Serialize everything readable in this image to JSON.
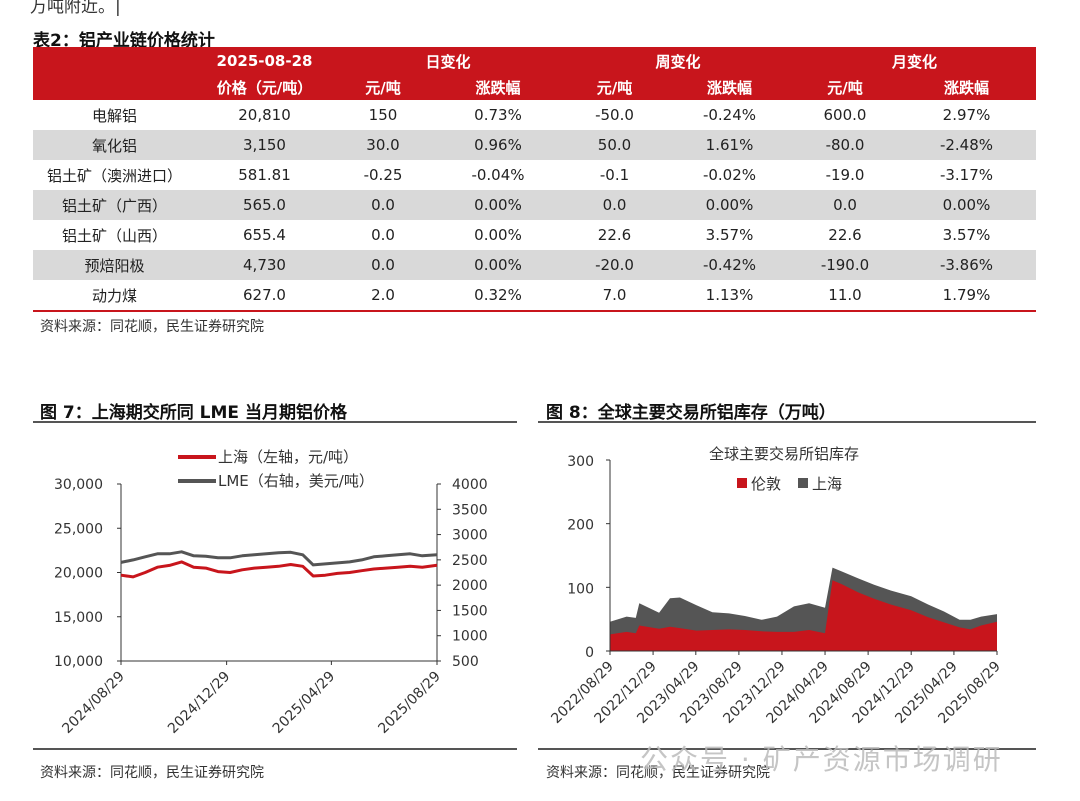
{
  "fragment_text": "万吨附近。|",
  "table": {
    "title": "表2：铝产业链价格统计",
    "date": "2025-08-28",
    "groups": [
      "日变化",
      "周变化",
      "月变化"
    ],
    "sub_headers": [
      "价格（元/吨）",
      "元/吨",
      "涨跌幅",
      "元/吨",
      "涨跌幅",
      "元/吨",
      "涨跌幅"
    ],
    "rows": [
      {
        "name": "电解铝",
        "cells": [
          "20,810",
          "150",
          "0.73%",
          "-50.0",
          "-0.24%",
          "600.0",
          "2.97%"
        ]
      },
      {
        "name": "氧化铝",
        "cells": [
          "3,150",
          "30.0",
          "0.96%",
          "50.0",
          "1.61%",
          "-80.0",
          "-2.48%"
        ]
      },
      {
        "name": "铝土矿（澳洲进口）",
        "cells": [
          "581.81",
          "-0.25",
          "-0.04%",
          "-0.1",
          "-0.02%",
          "-19.0",
          "-3.17%"
        ]
      },
      {
        "name": "铝土矿（广西）",
        "cells": [
          "565.0",
          "0.0",
          "0.00%",
          "0.0",
          "0.00%",
          "0.0",
          "0.00%"
        ]
      },
      {
        "name": "铝土矿（山西）",
        "cells": [
          "655.4",
          "0.0",
          "0.00%",
          "22.6",
          "3.57%",
          "22.6",
          "3.57%"
        ]
      },
      {
        "name": "预焙阳极",
        "cells": [
          "4,730",
          "0.0",
          "0.00%",
          "-20.0",
          "-0.42%",
          "-190.0",
          "-3.86%"
        ]
      },
      {
        "name": "动力煤",
        "cells": [
          "627.0",
          "2.0",
          "0.32%",
          "7.0",
          "1.13%",
          "11.0",
          "1.79%"
        ]
      }
    ],
    "source": "资料来源：同花顺，民生证券研究院"
  },
  "chart7": {
    "title": "图 7：上海期交所同 LME 当月期铝价格",
    "source": "资料来源：同花顺，民生证券研究院"
  },
  "chart8": {
    "title": "图 8：全球主要交易所铝库存（万吨）",
    "source": "资料来源：同花顺，民生证券研究院"
  },
  "watermark": "公众号 · 矿产资源市场调研",
  "colors": {
    "red": "#c8151c",
    "gray": "#555555",
    "header_bg": "#c8151c",
    "alt_row": "#d9d9d9"
  },
  "chart_data": [
    {
      "type": "line",
      "title": "",
      "x_ticks": [
        "2024/08/29",
        "2024/12/29",
        "2025/04/29",
        "2025/08/29"
      ],
      "y_left_ticks": [
        "30,000",
        "25,000",
        "20,000",
        "15,000",
        "10,000"
      ],
      "y_left_range": [
        10000,
        30000
      ],
      "y_right_ticks": [
        "4000",
        "3500",
        "3000",
        "2500",
        "2000",
        "1500",
        "1000",
        "500"
      ],
      "y_right_range": [
        500,
        4000
      ],
      "legend": {
        "position": "top",
        "items": [
          "上海（左轴，元/吨）",
          "LME（右轴，美元/吨）"
        ]
      },
      "series": [
        {
          "name": "上海（左轴，元/吨）",
          "axis": "left",
          "color": "#c8151c",
          "x": [
            "2024/08/29",
            "2024/09/12",
            "2024/09/26",
            "2024/10/10",
            "2024/10/24",
            "2024/11/07",
            "2024/11/21",
            "2024/12/05",
            "2024/12/19",
            "2025/01/02",
            "2025/01/16",
            "2025/01/30",
            "2025/02/13",
            "2025/02/27",
            "2025/03/13",
            "2025/03/27",
            "2025/04/08",
            "2025/04/22",
            "2025/05/06",
            "2025/05/20",
            "2025/06/03",
            "2025/06/17",
            "2025/07/01",
            "2025/07/15",
            "2025/07/29",
            "2025/08/12",
            "2025/08/29"
          ],
          "y": [
            19700,
            19500,
            20000,
            20600,
            20800,
            21200,
            20600,
            20500,
            20100,
            20000,
            20300,
            20500,
            20600,
            20700,
            20900,
            20700,
            19600,
            19700,
            19900,
            20000,
            20200,
            20400,
            20500,
            20600,
            20700,
            20600,
            20810
          ]
        },
        {
          "name": "LME（右轴，美元/吨）",
          "axis": "right",
          "color": "#555555",
          "x": [
            "2024/08/29",
            "2024/09/12",
            "2024/09/26",
            "2024/10/10",
            "2024/10/24",
            "2024/11/07",
            "2024/11/21",
            "2024/12/05",
            "2024/12/19",
            "2025/01/02",
            "2025/01/16",
            "2025/01/30",
            "2025/02/13",
            "2025/02/27",
            "2025/03/13",
            "2025/03/27",
            "2025/04/08",
            "2025/04/22",
            "2025/05/06",
            "2025/05/20",
            "2025/06/03",
            "2025/06/17",
            "2025/07/01",
            "2025/07/15",
            "2025/07/29",
            "2025/08/12",
            "2025/08/29"
          ],
          "y": [
            2450,
            2500,
            2560,
            2620,
            2620,
            2660,
            2580,
            2570,
            2540,
            2540,
            2580,
            2600,
            2620,
            2640,
            2650,
            2600,
            2400,
            2420,
            2440,
            2460,
            2500,
            2560,
            2580,
            2600,
            2620,
            2580,
            2600
          ]
        }
      ]
    },
    {
      "type": "area",
      "title": "全球主要交易所铝库存",
      "x_ticks": [
        "2022/08/29",
        "2022/12/29",
        "2023/04/29",
        "2023/08/29",
        "2023/12/29",
        "2024/04/29",
        "2024/08/29",
        "2024/12/29",
        "2025/04/29",
        "2025/08/29"
      ],
      "y_ticks": [
        "300",
        "200",
        "100",
        "0"
      ],
      "y_range": [
        0,
        300
      ],
      "stacked": true,
      "legend": {
        "position": "top",
        "items": [
          "伦敦",
          "上海"
        ]
      },
      "series": [
        {
          "name": "伦敦",
          "color": "#c8151c",
          "x": [
            "2022/08/29",
            "2022/10/15",
            "2022/11/10",
            "2022/11/20",
            "2023/01/15",
            "2023/02/15",
            "2023/03/15",
            "2023/05/01",
            "2023/06/15",
            "2023/08/01",
            "2023/09/15",
            "2023/11/01",
            "2023/12/15",
            "2024/02/01",
            "2024/03/15",
            "2024/04/29",
            "2024/05/20",
            "2024/06/15",
            "2024/08/01",
            "2024/09/15",
            "2024/11/01",
            "2024/12/29",
            "2025/02/15",
            "2025/04/01",
            "2025/05/15",
            "2025/06/15",
            "2025/07/15",
            "2025/08/29"
          ],
          "y": [
            26,
            30,
            28,
            40,
            35,
            38,
            36,
            32,
            33,
            34,
            33,
            31,
            30,
            30,
            33,
            28,
            111,
            105,
            92,
            82,
            73,
            64,
            53,
            45,
            37,
            34,
            40,
            46
          ]
        },
        {
          "name": "上海",
          "color": "#555555",
          "x": [
            "2022/08/29",
            "2022/10/15",
            "2022/11/10",
            "2022/11/20",
            "2023/01/15",
            "2023/02/15",
            "2023/03/15",
            "2023/05/01",
            "2023/06/15",
            "2023/08/01",
            "2023/09/15",
            "2023/11/01",
            "2023/12/15",
            "2024/02/01",
            "2024/03/15",
            "2024/04/29",
            "2024/05/20",
            "2024/06/15",
            "2024/08/01",
            "2024/09/15",
            "2024/11/01",
            "2024/12/29",
            "2025/02/15",
            "2025/04/01",
            "2025/05/15",
            "2025/06/15",
            "2025/07/15",
            "2025/08/29"
          ],
          "y": [
            20,
            24,
            24,
            35,
            25,
            45,
            48,
            40,
            28,
            25,
            22,
            18,
            24,
            40,
            42,
            40,
            20,
            20,
            22,
            22,
            22,
            22,
            20,
            17,
            12,
            15,
            14,
            12
          ]
        }
      ]
    }
  ]
}
